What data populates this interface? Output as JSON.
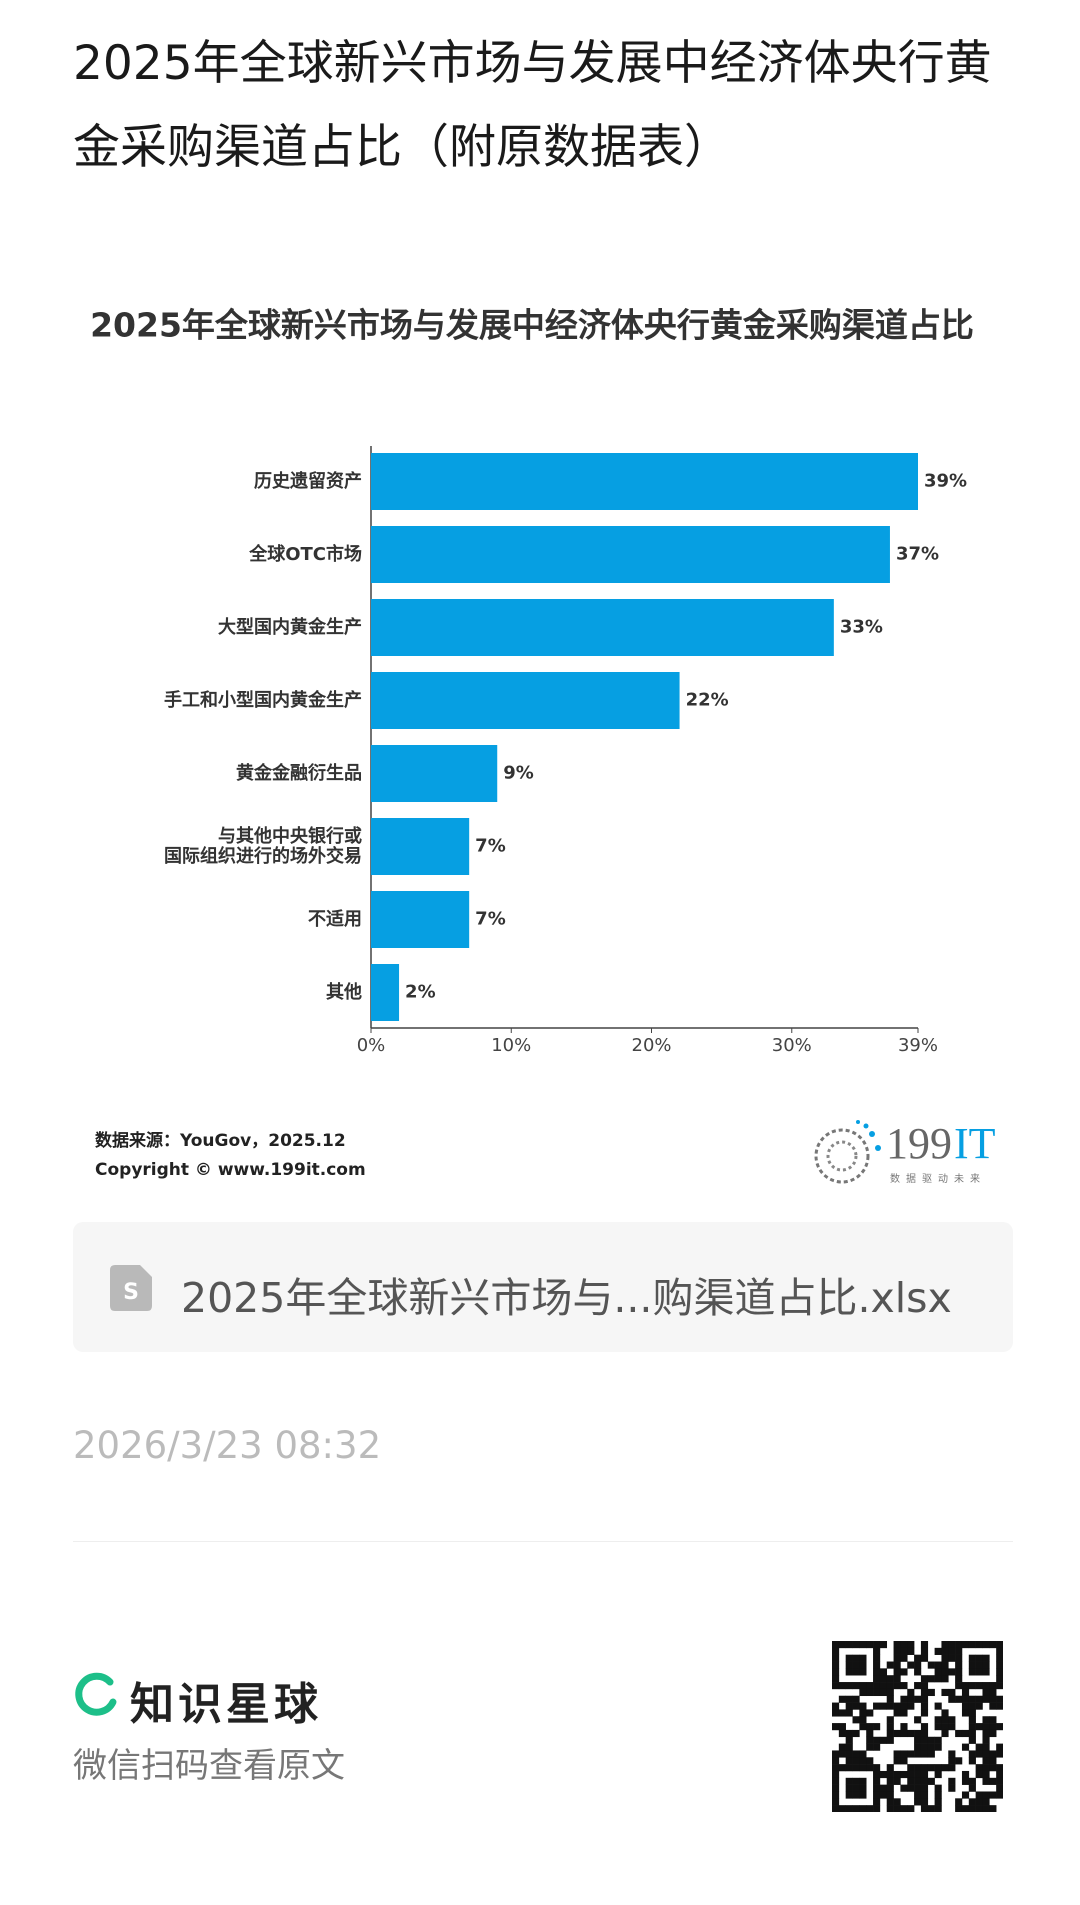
{
  "header": {
    "title": "2025年全球新兴市场与发展中经济体央行黄金采购渠道占比（附原数据表）"
  },
  "chart_data": {
    "type": "hbar",
    "title": "2025年全球新兴市场与发展中经济体央行黄金采购渠道占比",
    "categories": [
      "历史遗留资产",
      "全球OTC市场",
      "大型国内黄金生产",
      "手工和小型国内黄金生产",
      "黄金金融衍生品",
      "与其他中央银行或\n国际组织进行的场外交易",
      "不适用",
      "其他"
    ],
    "values": [
      39,
      37,
      33,
      22,
      9,
      7,
      7,
      2
    ],
    "value_labels": [
      "39%",
      "37%",
      "33%",
      "22%",
      "9%",
      "7%",
      "7%",
      "2%"
    ],
    "color": "#069fe2",
    "xlim": [
      0,
      39
    ],
    "xticks": [
      {
        "value": 0,
        "label": "0%"
      },
      {
        "value": 10,
        "label": "10%"
      },
      {
        "value": 20,
        "label": "20%"
      },
      {
        "value": 30,
        "label": "30%"
      },
      {
        "value": 39,
        "label": "39%"
      }
    ],
    "grid": false,
    "source": "数据来源：YouGov，2025.12",
    "copyright": "Copyright © www.199it.com",
    "logo_number": "199",
    "logo_suffix": "IT",
    "logo_tagline": "数据驱动未来"
  },
  "attachment": {
    "filename": "2025年全球新兴市场与...购渠道占比.xlsx"
  },
  "timestamp": "2026/3/23 08:32",
  "footer": {
    "brand": "知识星球",
    "prompt": "微信扫码查看原文"
  }
}
